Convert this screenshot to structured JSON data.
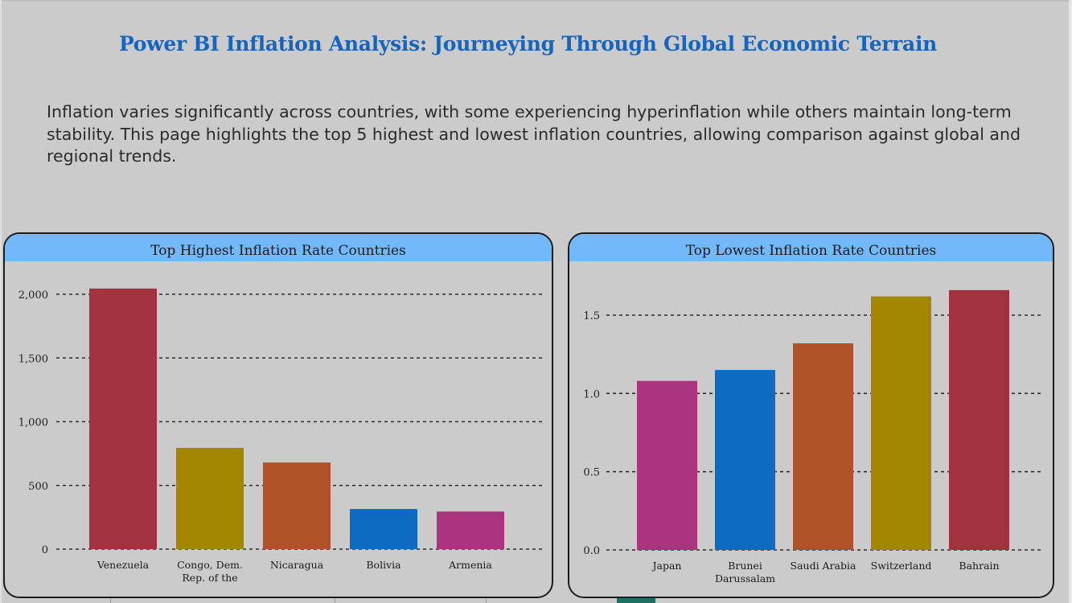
{
  "page": {
    "title": "Power BI Inflation Analysis: Journeying Through Global Economic Terrain",
    "description": "Inflation varies significantly across countries, with some experiencing hyperinflation while others maintain long-term stability. This page highlights the top 5 highest and lowest inflation countries, allowing comparison against global and regional trends."
  },
  "chart_data": [
    {
      "type": "bar",
      "title": "Top Highest Inflation Rate Countries",
      "categories": [
        "Venezuela",
        "Congo, Dem. Rep. of the",
        "Nicaragua",
        "Bolivia",
        "Armenia"
      ],
      "category_lines": [
        [
          "Venezuela"
        ],
        [
          "Congo, Dem.",
          "Rep. of the"
        ],
        [
          "Nicaragua"
        ],
        [
          "Bolivia"
        ],
        [
          "Armenia"
        ]
      ],
      "values": [
        2045,
        795,
        680,
        315,
        295
      ],
      "colors": [
        "#a1323e",
        "#a38700",
        "#af5227",
        "#0d6bc1",
        "#a9337d"
      ],
      "yticks": [
        0,
        500,
        1000,
        1500,
        2000
      ],
      "ytick_labels": [
        "0",
        "500",
        "1,000",
        "1,500",
        "2,000"
      ],
      "ylim": [
        0,
        2000
      ],
      "grid": true
    },
    {
      "type": "bar",
      "title": "Top Lowest Inflation Rate Countries",
      "categories": [
        "Japan",
        "Brunei Darussalam",
        "Saudi Arabia",
        "Switzerland",
        "Bahrain"
      ],
      "category_lines": [
        [
          "Japan"
        ],
        [
          "Brunei",
          "Darussalam"
        ],
        [
          "Saudi Arabia"
        ],
        [
          "Switzerland"
        ],
        [
          "Bahrain"
        ]
      ],
      "values": [
        1.08,
        1.15,
        1.32,
        1.62,
        1.66
      ],
      "colors": [
        "#a9337d",
        "#0d6bc1",
        "#af5227",
        "#a38700",
        "#a1323e"
      ],
      "yticks": [
        0,
        0.5,
        1.0,
        1.5
      ],
      "ytick_labels": [
        "0.0",
        "0.5",
        "1.0",
        "1.5"
      ],
      "ylim": [
        0,
        1.5
      ],
      "grid": true
    }
  ]
}
